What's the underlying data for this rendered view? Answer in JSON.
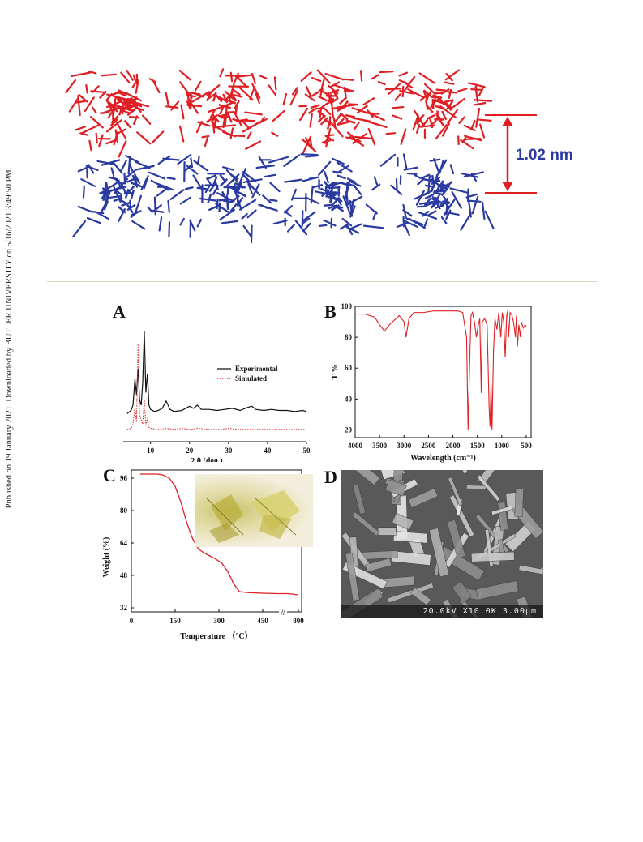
{
  "sidebar": {
    "text": "Published on 19 January 2021. Downloaded by BUTLER UNIVERSITY on 5/16/2021 3:49:50 PM."
  },
  "top_figure": {
    "spacing_label": "1.02 nm",
    "colors": {
      "layer_top": "#e01f24",
      "layer_bottom": "#2b3aa0",
      "arrow": "#e01f24",
      "label": "#2b3aa0"
    }
  },
  "panels": {
    "a_letter": "A",
    "b_letter": "B",
    "c_letter": "C",
    "d_letter": "D"
  },
  "sem": {
    "scalebar_text": "20.0kV X10.0K 3.00µm"
  },
  "chart_data": [
    {
      "id": "A",
      "type": "line",
      "xlabel": "2 θ (deg.)",
      "ylabel": "",
      "xlim": [
        3,
        50
      ],
      "xticks": [
        "10",
        "20",
        "30",
        "40",
        "50"
      ],
      "legend": [
        {
          "name": "Experimental",
          "color": "#111111",
          "style": "solid"
        },
        {
          "name": "Simulated",
          "color": "#e01f24",
          "style": "dotted"
        }
      ],
      "legend_position": "right",
      "series": [
        {
          "name": "Experimental",
          "x": [
            4,
            5,
            5.5,
            6,
            6.4,
            6.8,
            7.2,
            7.6,
            8,
            8.4,
            8.8,
            9.2,
            9.6,
            10,
            11,
            12,
            13,
            14,
            15,
            16,
            18,
            20,
            21,
            22,
            23,
            25,
            27,
            29,
            31,
            33,
            35,
            36,
            37,
            39,
            41,
            43,
            45,
            47,
            49,
            50
          ],
          "y": [
            0.22,
            0.25,
            0.3,
            0.55,
            0.4,
            0.65,
            0.35,
            0.3,
            0.52,
            1.0,
            0.42,
            0.6,
            0.3,
            0.26,
            0.24,
            0.25,
            0.27,
            0.34,
            0.26,
            0.24,
            0.25,
            0.29,
            0.27,
            0.3,
            0.26,
            0.26,
            0.25,
            0.26,
            0.27,
            0.25,
            0.28,
            0.29,
            0.26,
            0.25,
            0.26,
            0.25,
            0.25,
            0.24,
            0.25,
            0.24
          ]
        },
        {
          "name": "Simulated",
          "x": [
            4,
            5,
            5.5,
            6,
            6.4,
            6.8,
            7.2,
            7.6,
            8,
            8.4,
            8.8,
            9.2,
            9.6,
            10,
            12,
            14,
            16,
            18,
            20,
            22,
            25,
            28,
            30,
            33,
            36,
            40,
            44,
            48,
            50
          ],
          "y": [
            0.07,
            0.08,
            0.12,
            0.28,
            0.14,
            0.88,
            0.2,
            0.16,
            0.12,
            0.35,
            0.1,
            0.18,
            0.09,
            0.08,
            0.07,
            0.08,
            0.07,
            0.08,
            0.07,
            0.08,
            0.07,
            0.07,
            0.08,
            0.07,
            0.07,
            0.07,
            0.07,
            0.07,
            0.07
          ]
        }
      ]
    },
    {
      "id": "B",
      "type": "line",
      "xlabel": "Wavelength (cm⁻¹)",
      "ylabel": "T %",
      "xlim": [
        4000,
        400
      ],
      "ylim": [
        15,
        100
      ],
      "xticks": [
        "4000",
        "3500",
        "3000",
        "2500",
        "2000",
        "1500",
        "1000",
        "500"
      ],
      "yticks": [
        "20",
        "40",
        "60",
        "80",
        "100"
      ],
      "series": [
        {
          "name": "",
          "x": [
            4000,
            3800,
            3600,
            3500,
            3400,
            3300,
            3100,
            3000,
            2960,
            2900,
            2800,
            2600,
            2400,
            2200,
            2000,
            1900,
            1800,
            1720,
            1690,
            1660,
            1630,
            1600,
            1560,
            1520,
            1480,
            1450,
            1420,
            1400,
            1350,
            1300,
            1260,
            1240,
            1220,
            1200,
            1170,
            1140,
            1100,
            1060,
            1020,
            990,
            960,
            930,
            900,
            880,
            860,
            830,
            800,
            760,
            720,
            700,
            680,
            650,
            620,
            600,
            560,
            520,
            500
          ],
          "y": [
            95,
            95,
            93,
            88,
            84,
            88,
            94,
            90,
            80,
            92,
            96,
            96,
            97,
            97,
            97,
            97,
            96,
            80,
            20,
            60,
            94,
            96,
            90,
            80,
            88,
            92,
            44,
            90,
            92,
            88,
            35,
            22,
            50,
            20,
            70,
            92,
            85,
            96,
            80,
            96,
            90,
            67,
            94,
            97,
            80,
            96,
            95,
            90,
            80,
            94,
            74,
            88,
            80,
            90,
            86,
            88,
            87
          ]
        }
      ]
    },
    {
      "id": "C",
      "type": "line",
      "xlabel": "Temperature （°C）",
      "ylabel": "Weight (%)",
      "xlim": [
        0,
        800
      ],
      "ylim": [
        30,
        100
      ],
      "xticks": [
        "0",
        "150",
        "300",
        "450",
        "800"
      ],
      "yticks": [
        "32",
        "48",
        "64",
        "80",
        "96"
      ],
      "axis_break": "//",
      "series": [
        {
          "name": "",
          "x": [
            30,
            60,
            90,
            110,
            130,
            150,
            170,
            190,
            210,
            230,
            250,
            270,
            290,
            310,
            330,
            350,
            370,
            400,
            450,
            500,
            550,
            600,
            650,
            700,
            750,
            800
          ],
          "y": [
            98,
            98,
            98,
            97.5,
            96,
            92,
            84,
            74,
            66,
            61,
            59,
            57.5,
            56,
            54,
            50,
            44,
            40,
            39.5,
            39.2,
            39,
            39,
            38.8,
            38.8,
            38.6,
            38.5,
            38.5
          ]
        }
      ]
    }
  ]
}
